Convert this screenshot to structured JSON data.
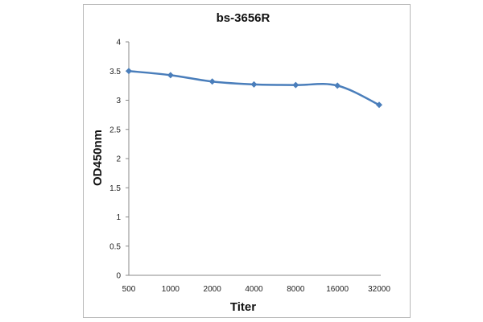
{
  "chart_data": {
    "type": "line",
    "title": "bs-3656R",
    "xlabel": "Titer",
    "ylabel": "OD450nm",
    "categories": [
      "500",
      "1000",
      "2000",
      "4000",
      "8000",
      "16000",
      "32000"
    ],
    "series": [
      {
        "values": [
          3.5,
          3.43,
          3.32,
          3.27,
          3.26,
          3.25,
          2.92
        ]
      }
    ],
    "ylim": [
      0,
      4
    ],
    "yticks": [
      "0",
      "0.5",
      "1",
      "1.5",
      "2",
      "2.5",
      "3",
      "3.5",
      "4"
    ],
    "grid": false,
    "legend": "none",
    "colors": {
      "line": "#4a7ebb",
      "marker": "#4a7ebb",
      "axis": "#888888",
      "frame": "#b8b8b8"
    }
  }
}
